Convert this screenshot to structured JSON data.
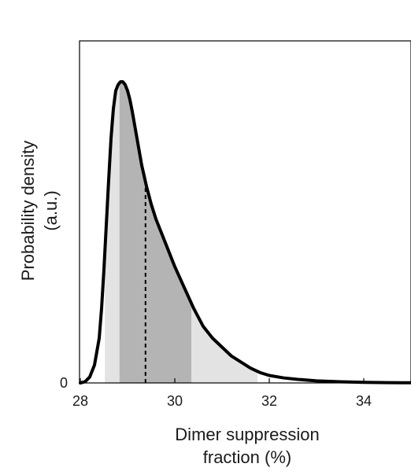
{
  "chart_data": {
    "type": "area",
    "xlabel": [
      "Dimer suppression",
      "fraction (%)"
    ],
    "ylabel": [
      "Probability density",
      "(a.u.)"
    ],
    "xlim": [
      28,
      35
    ],
    "ylim": [
      0,
      1.05
    ],
    "x_ticks": [
      28,
      30,
      32,
      34
    ],
    "x_tick_labels": [
      "28",
      "30",
      "32",
      "34"
    ],
    "y_ticks": [
      0
    ],
    "y_tick_labels": [
      "0"
    ],
    "grid": false,
    "legend": "none",
    "colors": {
      "curve": "#000000",
      "outer_band": "#e3e3e3",
      "inner_band": "#b4b4b4",
      "median_line": "#000000"
    },
    "median": 29.38,
    "inner_interval": [
      28.83,
      30.35
    ],
    "outer_interval": [
      28.52,
      31.75
    ],
    "curve": {
      "x": [
        28.0,
        28.1,
        28.2,
        28.3,
        28.4,
        28.45,
        28.5,
        28.55,
        28.6,
        28.65,
        28.7,
        28.75,
        28.8,
        28.85,
        28.9,
        28.95,
        29.0,
        29.05,
        29.1,
        29.2,
        29.3,
        29.4,
        29.5,
        29.6,
        29.8,
        30.0,
        30.2,
        30.4,
        30.6,
        30.8,
        31.0,
        31.2,
        31.4,
        31.6,
        31.8,
        32.0,
        32.3,
        32.6,
        33.0,
        33.5,
        34.0,
        34.5,
        35.0
      ],
      "y": [
        0.0,
        0.004,
        0.02,
        0.06,
        0.15,
        0.25,
        0.38,
        0.53,
        0.68,
        0.82,
        0.92,
        0.98,
        1.0,
        1.01,
        1.01,
        1.0,
        0.98,
        0.95,
        0.91,
        0.82,
        0.73,
        0.66,
        0.6,
        0.55,
        0.47,
        0.39,
        0.32,
        0.25,
        0.19,
        0.15,
        0.12,
        0.09,
        0.07,
        0.05,
        0.035,
        0.025,
        0.017,
        0.012,
        0.007,
        0.004,
        0.002,
        0.001,
        0.0005
      ]
    }
  }
}
